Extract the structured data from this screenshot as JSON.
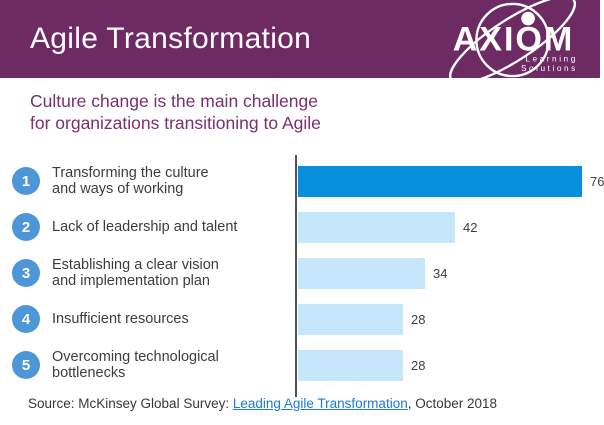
{
  "header": {
    "title": "Agile Transformation",
    "background_color": "#6E2A62",
    "logo": {
      "name": "AXIOM",
      "tagline_line1": "Learning",
      "tagline_line2": "Solutions"
    }
  },
  "subtitle": "Culture change is the main challenge\nfor organizations transitioning to Agile",
  "chart_data": {
    "type": "bar",
    "orientation": "horizontal",
    "title": "",
    "xlabel": "",
    "ylabel": "",
    "xlim": [
      0,
      80
    ],
    "grid": false,
    "legend": false,
    "value_labels_shown": true,
    "categories": [
      "Transforming the culture and ways of working",
      "Lack of leadership and talent",
      "Establishing a clear vision and implementation plan",
      "Insufficient resources",
      "Overcoming technological bottlenecks"
    ],
    "values": [
      76,
      42,
      34,
      28,
      28
    ],
    "items": [
      {
        "rank": "1",
        "label": "Transforming the culture\nand ways of working",
        "value": 76,
        "highlighted": true
      },
      {
        "rank": "2",
        "label": "Lack of leadership and talent",
        "value": 42,
        "highlighted": false
      },
      {
        "rank": "3",
        "label": "Establishing a clear vision\nand implementation plan",
        "value": 34,
        "highlighted": false
      },
      {
        "rank": "4",
        "label": "Insufficient resources",
        "value": 28,
        "highlighted": false
      },
      {
        "rank": "5",
        "label": "Overcoming technological\nbottlenecks",
        "value": 28,
        "highlighted": false
      }
    ],
    "colors": {
      "highlight": "#0690DC",
      "normal": "#C6E7FB",
      "rank_circle": "#4D96D8",
      "axis_line": "#4d545c"
    }
  },
  "footer": {
    "prefix": "Source: McKinsey Global Survey: ",
    "link_text": "Leading Agile Transformation",
    "suffix": ", October 2018",
    "link_color": "#1B7AD8"
  }
}
